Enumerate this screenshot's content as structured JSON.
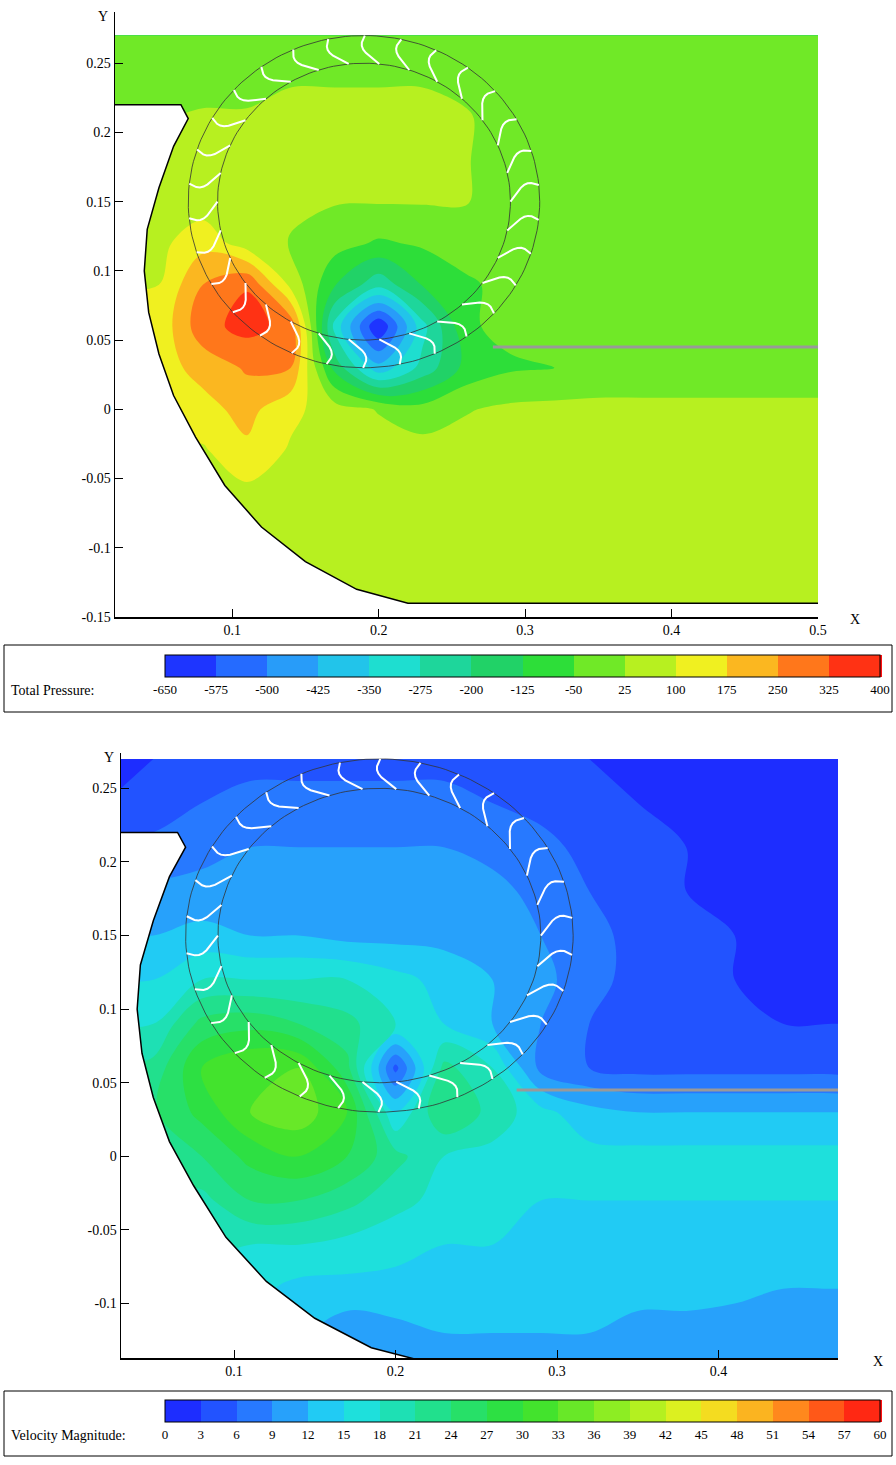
{
  "chart_data": [
    {
      "type": "contour",
      "x_label": "X",
      "y_label": "Y",
      "xlim": [
        0.02,
        0.5
      ],
      "ylim": [
        -0.15,
        0.287
      ],
      "xticks": [
        0.1,
        0.2,
        0.3,
        0.4,
        0.5
      ],
      "yticks": [
        -0.15,
        -0.1,
        -0.05,
        0,
        0.05,
        0.1,
        0.15,
        0.2,
        0.25
      ],
      "colorbar": {
        "label": "Total Pressure:",
        "range": [
          -650,
          400
        ],
        "ticks": [
          -650,
          -575,
          -500,
          -425,
          -350,
          -275,
          -200,
          -125,
          -50,
          25,
          100,
          175,
          250,
          325,
          400
        ]
      },
      "x": [
        0.02,
        0.05,
        0.08,
        0.11,
        0.14,
        0.17,
        0.2,
        0.23,
        0.26,
        0.29,
        0.32,
        0.35,
        0.38,
        0.41,
        0.44,
        0.47,
        0.5
      ],
      "y": [
        -0.15,
        -0.12,
        -0.09,
        -0.06,
        -0.03,
        0,
        0.03,
        0.06,
        0.09,
        0.12,
        0.15,
        0.18,
        0.21,
        0.24,
        0.27
      ],
      "z": [
        [
          null,
          null,
          null,
          null,
          null,
          null,
          null,
          null,
          null,
          null,
          null,
          null,
          null,
          null,
          null,
          null,
          null
        ],
        [
          null,
          null,
          null,
          null,
          null,
          60,
          60,
          55,
          55,
          55,
          55,
          55,
          55,
          55,
          55,
          55,
          55
        ],
        [
          null,
          null,
          null,
          null,
          65,
          65,
          60,
          55,
          55,
          55,
          55,
          55,
          55,
          55,
          55,
          55,
          55
        ],
        [
          null,
          null,
          null,
          80,
          75,
          65,
          60,
          55,
          55,
          55,
          55,
          55,
          55,
          55,
          55,
          55,
          55
        ],
        [
          null,
          null,
          90,
          160,
          90,
          70,
          60,
          55,
          55,
          55,
          55,
          55,
          55,
          55,
          55,
          55,
          55
        ],
        [
          null,
          null,
          150,
          200,
          120,
          60,
          20,
          -20,
          20,
          40,
          45,
          50,
          50,
          50,
          50,
          50,
          50
        ],
        [
          null,
          null,
          200,
          260,
          250,
          -150,
          -400,
          -250,
          -100,
          -60,
          -50,
          -40,
          -40,
          -40,
          -40,
          -40,
          -40
        ],
        [
          null,
          120,
          300,
          350,
          300,
          -300,
          -650,
          -300,
          -60,
          -30,
          -20,
          -20,
          -20,
          -20,
          -20,
          -20,
          -20
        ],
        [
          null,
          100,
          250,
          320,
          80,
          -120,
          -250,
          -120,
          -60,
          -30,
          -20,
          -20,
          -20,
          -20,
          -20,
          -20,
          -20
        ],
        [
          null,
          80,
          150,
          60,
          20,
          -20,
          -60,
          -40,
          -20,
          -30,
          -20,
          -20,
          -20,
          -20,
          -20,
          -20,
          -20
        ],
        [
          null,
          60,
          60,
          40,
          40,
          30,
          30,
          30,
          30,
          -30,
          -20,
          -20,
          -20,
          -20,
          -20,
          -20,
          -20
        ],
        [
          null,
          null,
          40,
          40,
          40,
          40,
          40,
          40,
          30,
          -20,
          -20,
          -20,
          -20,
          -20,
          -20,
          -20,
          -20
        ],
        [
          null,
          null,
          30,
          30,
          40,
          40,
          40,
          40,
          30,
          0,
          -10,
          -20,
          -20,
          -20,
          -20,
          -20,
          -20
        ],
        [
          0,
          0,
          10,
          10,
          20,
          20,
          20,
          20,
          10,
          0,
          -10,
          -10,
          -10,
          -10,
          -10,
          -10,
          -10
        ],
        [
          0,
          0,
          0,
          0,
          10,
          10,
          10,
          10,
          0,
          0,
          -10,
          -10,
          -10,
          -10,
          -10,
          -10,
          -10
        ]
      ],
      "housing": [
        [
          0.02,
          0.22
        ],
        [
          0.065,
          0.22
        ],
        [
          0.07,
          0.21
        ],
        [
          0.06,
          0.19
        ],
        [
          0.05,
          0.16
        ],
        [
          0.042,
          0.13
        ],
        [
          0.04,
          0.1
        ],
        [
          0.043,
          0.07
        ],
        [
          0.05,
          0.04
        ],
        [
          0.06,
          0.01
        ],
        [
          0.075,
          -0.02
        ],
        [
          0.095,
          -0.055
        ],
        [
          0.12,
          -0.085
        ],
        [
          0.15,
          -0.11
        ],
        [
          0.185,
          -0.13
        ],
        [
          0.22,
          -0.14
        ],
        [
          0.5,
          -0.14
        ]
      ],
      "rotor": {
        "center": [
          0.19,
          0.15
        ],
        "inner_radius": 0.1,
        "outer_radius": 0.12,
        "blades": 30
      },
      "wall": [
        [
          0.278,
          0.045
        ],
        [
          0.5,
          0.045
        ]
      ]
    },
    {
      "type": "contour",
      "x_label": "X",
      "y_label": "Y",
      "xlim": [
        0.03,
        0.474
      ],
      "ylim": [
        -0.137,
        0.274
      ],
      "xticks": [
        0.1,
        0.2,
        0.3,
        0.4
      ],
      "yticks": [
        -0.1,
        -0.05,
        0,
        0.05,
        0.1,
        0.15,
        0.2,
        0.25
      ],
      "colorbar": {
        "label": "Velocity Magnitude:",
        "range": [
          0,
          60
        ],
        "ticks": [
          0,
          3,
          6,
          9,
          12,
          15,
          18,
          21,
          24,
          27,
          30,
          33,
          36,
          39,
          42,
          45,
          48,
          51,
          54,
          57,
          60
        ]
      },
      "x": [
        0.02,
        0.05,
        0.08,
        0.11,
        0.14,
        0.17,
        0.2,
        0.23,
        0.26,
        0.29,
        0.32,
        0.35,
        0.38,
        0.41,
        0.44,
        0.47,
        0.5
      ],
      "y": [
        -0.15,
        -0.12,
        -0.09,
        -0.06,
        -0.03,
        0,
        0.03,
        0.06,
        0.09,
        0.12,
        0.15,
        0.18,
        0.21,
        0.24,
        0.27
      ],
      "z": [
        [
          null,
          null,
          null,
          null,
          null,
          null,
          null,
          null,
          null,
          null,
          null,
          null,
          null,
          null,
          null,
          null,
          null
        ],
        [
          null,
          null,
          null,
          null,
          null,
          10,
          11,
          12,
          12,
          12,
          12,
          11,
          11,
          10,
          10,
          10,
          10
        ],
        [
          null,
          null,
          null,
          null,
          14,
          14,
          14,
          13,
          13,
          13,
          13,
          13,
          13,
          13,
          12,
          12,
          12
        ],
        [
          null,
          null,
          null,
          18,
          18,
          17,
          16,
          15,
          15,
          15,
          14,
          14,
          14,
          14,
          14,
          14,
          14
        ],
        [
          null,
          null,
          20,
          24,
          24,
          22,
          19,
          17,
          16,
          15,
          15,
          15,
          15,
          15,
          15,
          15,
          15
        ],
        [
          null,
          null,
          24,
          28,
          30,
          27,
          22,
          18,
          17,
          16,
          16,
          16,
          16,
          16,
          16,
          16,
          16
        ],
        [
          null,
          null,
          28,
          33,
          35,
          30,
          15,
          24,
          20,
          16,
          13,
          12,
          12,
          12,
          12,
          12,
          12
        ],
        [
          null,
          22,
          30,
          33,
          33,
          25,
          5,
          22,
          18,
          8,
          6,
          5,
          5,
          5,
          5,
          5,
          4
        ],
        [
          null,
          18,
          25,
          26,
          24,
          22,
          18,
          15,
          12,
          9,
          6,
          5,
          4,
          4,
          3,
          3,
          3
        ],
        [
          null,
          15,
          18,
          18,
          18,
          18,
          16,
          14,
          12,
          10,
          7,
          5,
          4,
          3,
          3,
          3,
          2
        ],
        [
          null,
          12,
          13,
          12,
          12,
          11,
          11,
          11,
          11,
          9,
          7,
          5,
          4,
          3,
          3,
          2,
          2
        ],
        [
          null,
          null,
          10,
          10,
          10,
          10,
          10,
          10,
          10,
          8,
          6,
          4,
          3,
          3,
          2,
          2,
          2
        ],
        [
          null,
          null,
          8,
          9,
          9,
          9,
          9,
          9,
          8,
          7,
          5,
          4,
          3,
          2,
          2,
          2,
          2
        ],
        [
          3,
          4,
          6,
          7,
          7,
          7,
          7,
          7,
          6,
          5,
          4,
          3,
          2,
          2,
          2,
          2,
          2
        ],
        [
          2,
          3,
          4,
          5,
          5,
          5,
          5,
          5,
          4,
          4,
          3,
          2,
          2,
          2,
          2,
          2,
          1
        ]
      ],
      "housing": [
        [
          0.02,
          0.22
        ],
        [
          0.065,
          0.22
        ],
        [
          0.07,
          0.21
        ],
        [
          0.06,
          0.19
        ],
        [
          0.05,
          0.16
        ],
        [
          0.042,
          0.13
        ],
        [
          0.04,
          0.1
        ],
        [
          0.043,
          0.07
        ],
        [
          0.05,
          0.04
        ],
        [
          0.06,
          0.01
        ],
        [
          0.075,
          -0.02
        ],
        [
          0.095,
          -0.055
        ],
        [
          0.12,
          -0.085
        ],
        [
          0.15,
          -0.11
        ],
        [
          0.185,
          -0.13
        ],
        [
          0.22,
          -0.14
        ],
        [
          0.5,
          -0.14
        ]
      ],
      "rotor": {
        "center": [
          0.19,
          0.15
        ],
        "inner_radius": 0.1,
        "outer_radius": 0.12,
        "blades": 30
      },
      "wall": [
        [
          0.275,
          0.045
        ],
        [
          0.5,
          0.045
        ]
      ]
    }
  ]
}
